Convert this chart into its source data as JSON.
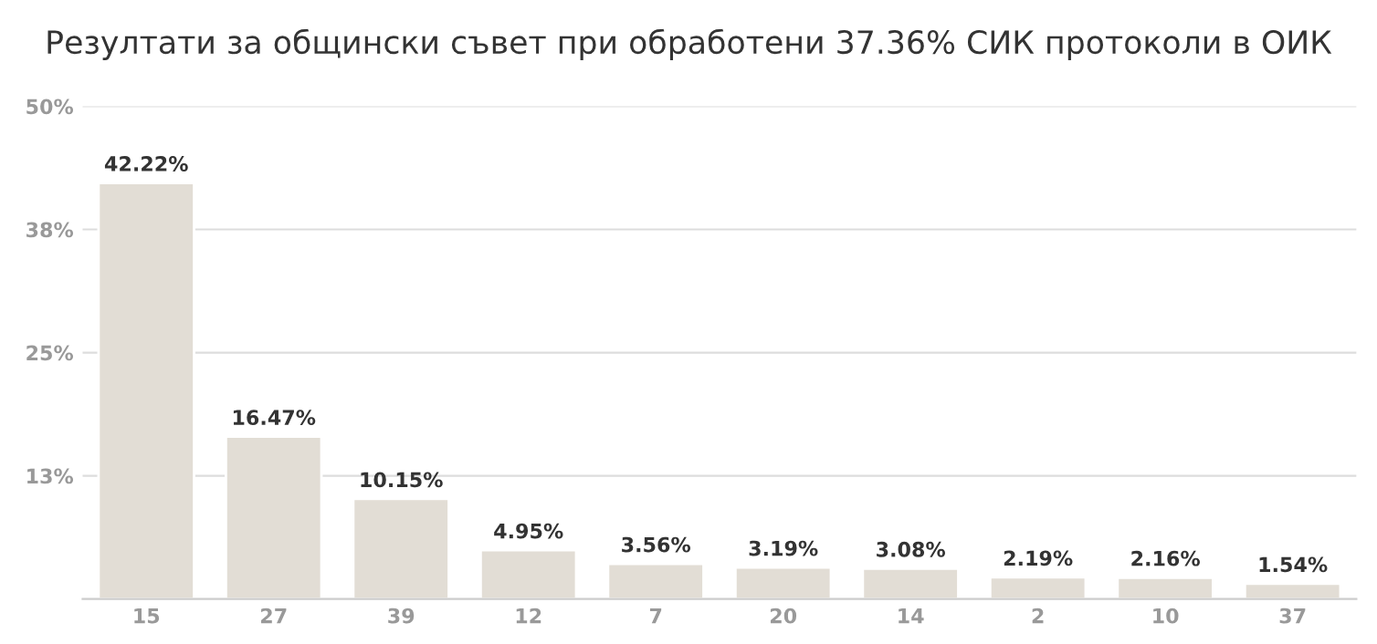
{
  "chart_data": {
    "type": "bar",
    "title": "Резултати за общински съвет при обработени 37.36% СИК протоколи в ОИК",
    "categories": [
      "15",
      "27",
      "39",
      "12",
      "7",
      "20",
      "14",
      "2",
      "10",
      "37"
    ],
    "values": [
      42.22,
      16.47,
      10.15,
      4.95,
      3.56,
      3.19,
      3.08,
      2.19,
      2.16,
      1.54
    ],
    "value_labels": [
      "42.22%",
      "16.47%",
      "10.15%",
      "4.95%",
      "3.56%",
      "3.19%",
      "3.08%",
      "2.19%",
      "2.16%",
      "1.54%"
    ],
    "color": "#e2ddd5",
    "ylim": [
      0,
      50
    ],
    "yticks": [
      {
        "value": 12.5,
        "label": "13%"
      },
      {
        "value": 25,
        "label": "25%"
      },
      {
        "value": 37.5,
        "label": "38%"
      },
      {
        "value": 50,
        "label": "50%"
      }
    ],
    "grid": "y"
  }
}
